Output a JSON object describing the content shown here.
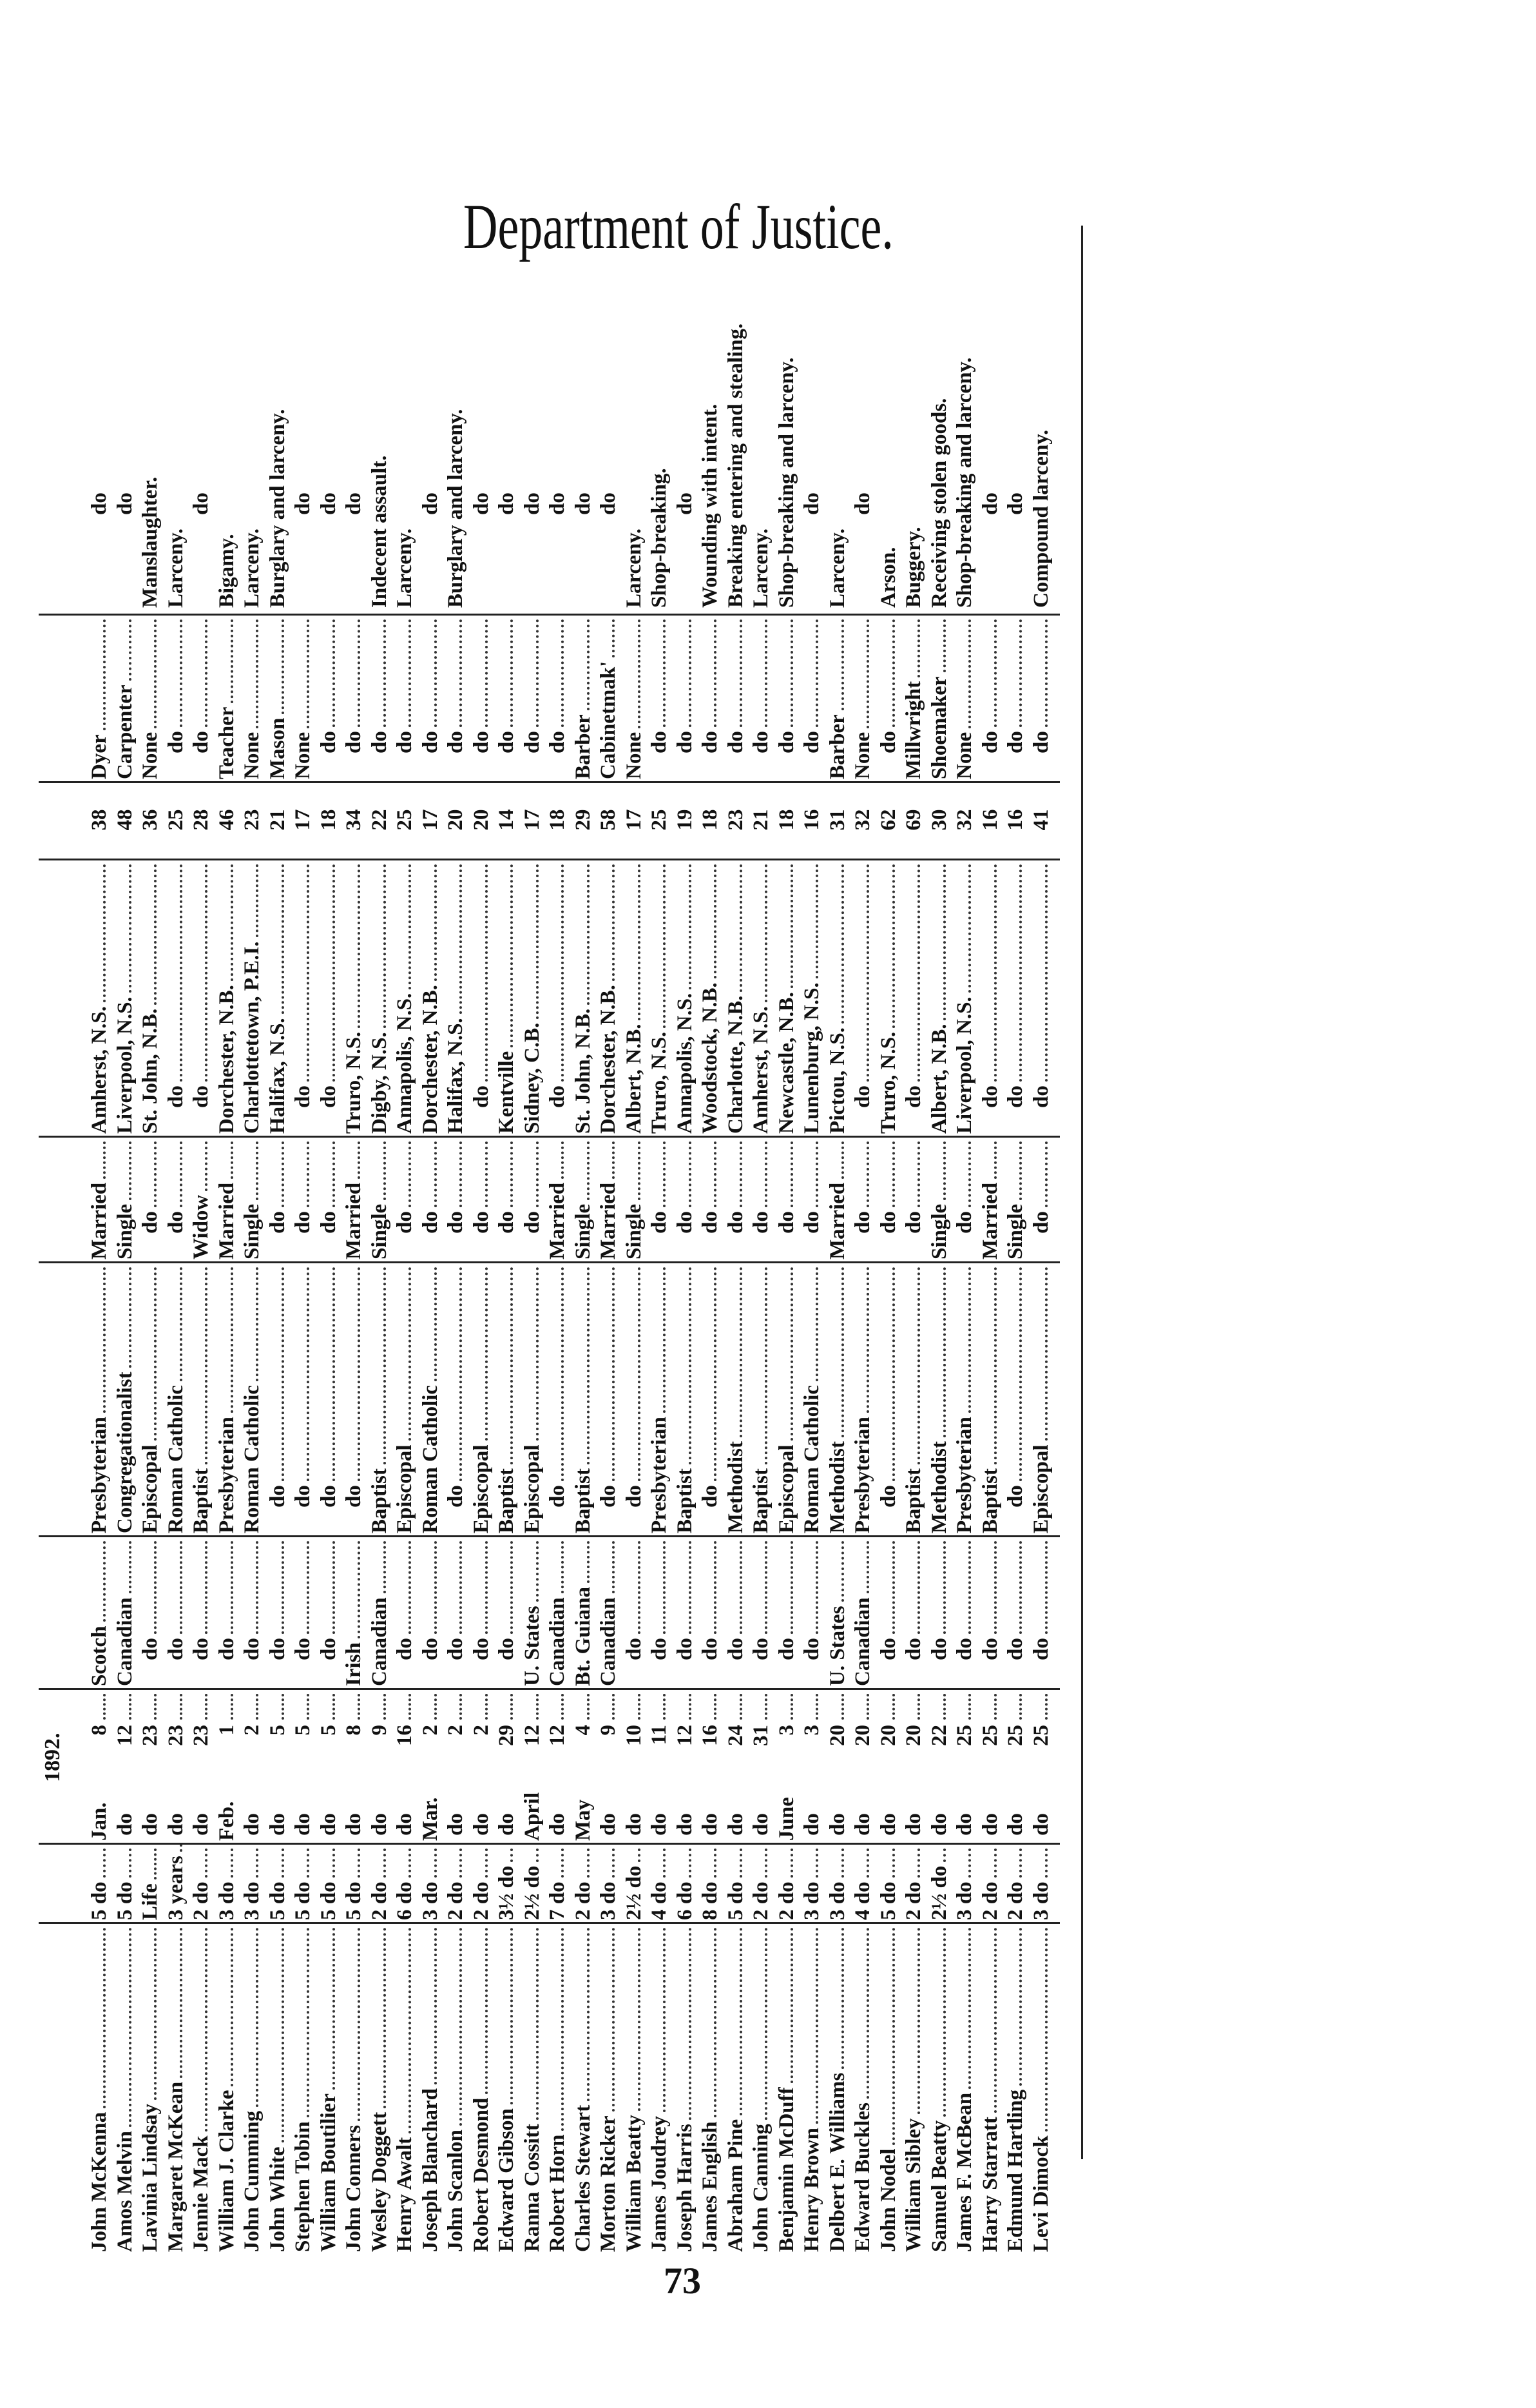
{
  "header": {
    "title": "Department of Justice."
  },
  "table": {
    "year_label": "1892.",
    "rows": [
      {
        "name": "John McKenna",
        "sentence": "5 do",
        "month": "Jan.",
        "day": "8",
        "nationality": "Scotch",
        "religion": "Presbyterian",
        "marital": "Married",
        "residence": "Amherst, N.S.",
        "age": "38",
        "trade": "Dyer",
        "crime": "do"
      },
      {
        "name": "Amos Melvin",
        "sentence": "5 do",
        "month": "do",
        "day": "12",
        "nationality": "Canadian",
        "religion": "Congregationalist",
        "marital": "Single",
        "residence": "Liverpool, N.S.",
        "age": "48",
        "trade": "Carpenter",
        "crime": "do"
      },
      {
        "name": "Lavinia Lindsay",
        "sentence": "Life",
        "month": "do",
        "day": "23",
        "nationality": "do",
        "religion": "Episcopal",
        "marital": "do",
        "residence": "St. John, N.B.",
        "age": "36",
        "trade": "None",
        "crime": "Manslaughter."
      },
      {
        "name": "Margaret McKean",
        "sentence": "3 years",
        "month": "do",
        "day": "23",
        "nationality": "do",
        "religion": "Roman Catholic",
        "marital": "do",
        "residence": "do",
        "age": "25",
        "trade": "do",
        "crime": "Larceny."
      },
      {
        "name": "Jennie Mack",
        "sentence": "2 do",
        "month": "do",
        "day": "23",
        "nationality": "do",
        "religion": "Baptist",
        "marital": "Widow",
        "residence": "do",
        "age": "28",
        "trade": "do",
        "crime": "do"
      },
      {
        "name": "William J. Clarke",
        "sentence": "3 do",
        "month": "Feb.",
        "day": "1",
        "nationality": "do",
        "religion": "Presbyterian",
        "marital": "Married",
        "residence": "Dorchester, N.B.",
        "age": "46",
        "trade": "Teacher",
        "crime": "Bigamy."
      },
      {
        "name": "John Cumming",
        "sentence": "3 do",
        "month": "do",
        "day": "2",
        "nationality": "do",
        "religion": "Roman Catholic",
        "marital": "Single",
        "residence": "Charlottetown, P.E.I.",
        "age": "23",
        "trade": "None",
        "crime": "Larceny."
      },
      {
        "name": "John White",
        "sentence": "5 do",
        "month": "do",
        "day": "5",
        "nationality": "do",
        "religion": "do",
        "marital": "do",
        "residence": "Halifax, N.S.",
        "age": "21",
        "trade": "Mason",
        "crime": "Burglary and larceny."
      },
      {
        "name": "Stephen Tobin",
        "sentence": "5 do",
        "month": "do",
        "day": "5",
        "nationality": "do",
        "religion": "do",
        "marital": "do",
        "residence": "do",
        "age": "17",
        "trade": "None",
        "crime": "do"
      },
      {
        "name": "William Boutilier",
        "sentence": "5 do",
        "month": "do",
        "day": "5",
        "nationality": "do",
        "religion": "do",
        "marital": "do",
        "residence": "do",
        "age": "18",
        "trade": "do",
        "crime": "do"
      },
      {
        "name": "John Conners",
        "sentence": "5 do",
        "month": "do",
        "day": "8",
        "nationality": "Irish",
        "religion": "do",
        "marital": "Married",
        "residence": "Truro, N.S.",
        "age": "34",
        "trade": "do",
        "crime": "do"
      },
      {
        "name": "Wesley Doggett",
        "sentence": "2 do",
        "month": "do",
        "day": "9",
        "nationality": "Canadian",
        "religion": "Baptist",
        "marital": "Single",
        "residence": "Digby, N.S.",
        "age": "22",
        "trade": "do",
        "crime": "Indecent assault."
      },
      {
        "name": "Henry Awalt",
        "sentence": "6 do",
        "month": "do",
        "day": "16",
        "nationality": "do",
        "religion": "Episcopal",
        "marital": "do",
        "residence": "Annapolis, N.S.",
        "age": "25",
        "trade": "do",
        "crime": "Larceny."
      },
      {
        "name": "Joseph Blanchard",
        "sentence": "3 do",
        "month": "Mar.",
        "day": "2",
        "nationality": "do",
        "religion": "Roman Catholic",
        "marital": "do",
        "residence": "Dorchester, N.B.",
        "age": "17",
        "trade": "do",
        "crime": "do"
      },
      {
        "name": "John Scanlon",
        "sentence": "2 do",
        "month": "do",
        "day": "2",
        "nationality": "do",
        "religion": "do",
        "marital": "do",
        "residence": "Halifax, N.S.",
        "age": "20",
        "trade": "do",
        "crime": "Burglary and larceny."
      },
      {
        "name": "Robert Desmond",
        "sentence": "2 do",
        "month": "do",
        "day": "2",
        "nationality": "do",
        "religion": "Episcopal",
        "marital": "do",
        "residence": "do",
        "age": "20",
        "trade": "do",
        "crime": "do"
      },
      {
        "name": "Edward Gibson",
        "sentence": "3½ do",
        "month": "do",
        "day": "29",
        "nationality": "do",
        "religion": "Baptist",
        "marital": "do",
        "residence": "Kentville",
        "age": "14",
        "trade": "do",
        "crime": "do"
      },
      {
        "name": "Ranna Cossitt",
        "sentence": "2½ do",
        "month": "April",
        "day": "12",
        "nationality": "U. States",
        "religion": "Episcopal",
        "marital": "do",
        "residence": "Sidney, C.B.",
        "age": "17",
        "trade": "do",
        "crime": "do"
      },
      {
        "name": "Robert Horn",
        "sentence": "7 do",
        "month": "do",
        "day": "12",
        "nationality": "Canadian",
        "religion": "do",
        "marital": "Married",
        "residence": "do",
        "age": "18",
        "trade": "do",
        "crime": "do"
      },
      {
        "name": "Charles Stewart",
        "sentence": "2 do",
        "month": "May",
        "day": "4",
        "nationality": "Bt. Guiana",
        "religion": "Baptist",
        "marital": "Single",
        "residence": "St. John, N.B.",
        "age": "29",
        "trade": "Barber",
        "crime": "do"
      },
      {
        "name": "Morton Ricker",
        "sentence": "3 do",
        "month": "do",
        "day": "9",
        "nationality": "Canadian",
        "religion": "do",
        "marital": "Married",
        "residence": "Dorchester, N.B.",
        "age": "58",
        "trade": "Cabinetmak'",
        "crime": "do"
      },
      {
        "name": "William Beatty",
        "sentence": "2½ do",
        "month": "do",
        "day": "10",
        "nationality": "do",
        "religion": "do",
        "marital": "Single",
        "residence": "Albert, N.B.",
        "age": "17",
        "trade": "None",
        "crime": "Larceny."
      },
      {
        "name": "James Joudrey",
        "sentence": "4 do",
        "month": "do",
        "day": "11",
        "nationality": "do",
        "religion": "Presbyterian",
        "marital": "do",
        "residence": "Truro, N.S.",
        "age": "25",
        "trade": "do",
        "crime": "Shop-breaking."
      },
      {
        "name": "Joseph Harris",
        "sentence": "6 do",
        "month": "do",
        "day": "12",
        "nationality": "do",
        "religion": "Baptist",
        "marital": "do",
        "residence": "Annapolis, N.S.",
        "age": "19",
        "trade": "do",
        "crime": "do"
      },
      {
        "name": "James English",
        "sentence": "8 do",
        "month": "do",
        "day": "16",
        "nationality": "do",
        "religion": "do",
        "marital": "do",
        "residence": "Woodstock, N.B.",
        "age": "18",
        "trade": "do",
        "crime": "Wounding with intent."
      },
      {
        "name": "Abraham Pine",
        "sentence": "5 do",
        "month": "do",
        "day": "24",
        "nationality": "do",
        "religion": "Methodist",
        "marital": "do",
        "residence": "Charlotte, N.B.",
        "age": "23",
        "trade": "do",
        "crime": "Breaking entering and stealing."
      },
      {
        "name": "John Canning",
        "sentence": "2 do",
        "month": "do",
        "day": "31",
        "nationality": "do",
        "religion": "Baptist",
        "marital": "do",
        "residence": "Amherst, N.S.",
        "age": "21",
        "trade": "do",
        "crime": "Larceny."
      },
      {
        "name": "Benjamin McDuff",
        "sentence": "2 do",
        "month": "June",
        "day": "3",
        "nationality": "do",
        "religion": "Episcopal",
        "marital": "do",
        "residence": "Newcastle, N.B.",
        "age": "18",
        "trade": "do",
        "crime": "Shop-breaking and larceny."
      },
      {
        "name": "Henry Brown",
        "sentence": "3 do",
        "month": "do",
        "day": "3",
        "nationality": "do",
        "religion": "Roman Catholic",
        "marital": "do",
        "residence": "Lunenburg, N.S.",
        "age": "16",
        "trade": "do",
        "crime": "do"
      },
      {
        "name": "Delbert E. Williams",
        "sentence": "3 do",
        "month": "do",
        "day": "20",
        "nationality": "U. States",
        "religion": "Methodist",
        "marital": "Married",
        "residence": "Pictou, N.S.",
        "age": "31",
        "trade": "Barber",
        "crime": "Larceny."
      },
      {
        "name": "Edward Buckles",
        "sentence": "4 do",
        "month": "do",
        "day": "20",
        "nationality": "Canadian",
        "religion": "Presbyterian",
        "marital": "do",
        "residence": "do",
        "age": "32",
        "trade": "None",
        "crime": "do"
      },
      {
        "name": "John Nodel",
        "sentence": "5 do",
        "month": "do",
        "day": "20",
        "nationality": "do",
        "religion": "do",
        "marital": "do",
        "residence": "Truro, N.S.",
        "age": "62",
        "trade": "do",
        "crime": "Arson."
      },
      {
        "name": "William Sibley",
        "sentence": "2 do",
        "month": "do",
        "day": "20",
        "nationality": "do",
        "religion": "Baptist",
        "marital": "do",
        "residence": "do",
        "age": "69",
        "trade": "Millwright",
        "crime": "Buggery."
      },
      {
        "name": "Samuel Beatty",
        "sentence": "2½ do",
        "month": "do",
        "day": "22",
        "nationality": "do",
        "religion": "Methodist",
        "marital": "Single",
        "residence": "Albert, N.B.",
        "age": "30",
        "trade": "Shoemaker",
        "crime": "Receiving stolen goods."
      },
      {
        "name": "James F. McBean",
        "sentence": "3 do",
        "month": "do",
        "day": "25",
        "nationality": "do",
        "religion": "Presbyterian",
        "marital": "do",
        "residence": "Liverpool, N.S.",
        "age": "32",
        "trade": "None",
        "crime": "Shop-breaking and larceny."
      },
      {
        "name": "Harry Starratt",
        "sentence": "2 do",
        "month": "do",
        "day": "25",
        "nationality": "do",
        "religion": "Baptist",
        "marital": "Married",
        "residence": "do",
        "age": "16",
        "trade": "do",
        "crime": "do"
      },
      {
        "name": "Edmund Hartling",
        "sentence": "2 do",
        "month": "do",
        "day": "25",
        "nationality": "do",
        "religion": "do",
        "marital": "Single",
        "residence": "do",
        "age": "16",
        "trade": "do",
        "crime": "do"
      },
      {
        "name": "Levi Dimock",
        "sentence": "3 do",
        "month": "do",
        "day": "25",
        "nationality": "do",
        "religion": "Episcopal",
        "marital": "do",
        "residence": "do",
        "age": "41",
        "trade": "do",
        "crime": "Compound larceny."
      }
    ]
  },
  "footer": {
    "page_number": "73"
  }
}
